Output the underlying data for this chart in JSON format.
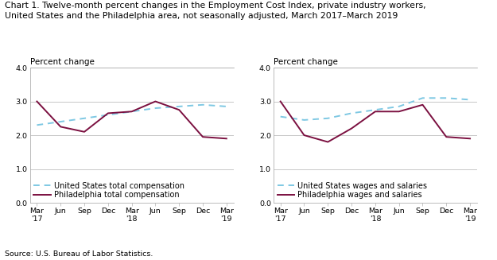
{
  "title_line1": "Chart 1. Twelve-month percent changes in the Employment Cost Index, private industry workers,",
  "title_line2": "United States and the Philadelphia area, not seasonally adjusted, March 2017–March 2019",
  "source": "Source: U.S. Bureau of Labor Statistics.",
  "ylabel": "Percent change",
  "xlabels": [
    "Mar\n'17",
    "Jun",
    "Sep",
    "Dec",
    "Mar\n'18",
    "Jun",
    "Sep",
    "Dec",
    "Mar\n'19"
  ],
  "ylim": [
    0.0,
    4.0
  ],
  "yticks": [
    0.0,
    1.0,
    2.0,
    3.0,
    4.0
  ],
  "left_chart": {
    "us_total": [
      2.3,
      2.4,
      2.5,
      2.6,
      2.7,
      2.8,
      2.85,
      2.9,
      2.85
    ],
    "philly_total": [
      3.0,
      2.25,
      2.1,
      2.65,
      2.7,
      3.0,
      2.75,
      1.95,
      1.9
    ],
    "us_label": "United States total compensation",
    "philly_label": "Philadelphia total compensation"
  },
  "right_chart": {
    "us_wages": [
      2.55,
      2.45,
      2.5,
      2.65,
      2.75,
      2.85,
      3.1,
      3.1,
      3.05
    ],
    "philly_wages": [
      3.0,
      2.0,
      1.8,
      2.2,
      2.7,
      2.7,
      2.9,
      1.95,
      1.9
    ],
    "us_label": "United States wages and salaries",
    "philly_label": "Philadelphia wages and salaries"
  },
  "us_color": "#7EC8E3",
  "philly_color": "#7B1040",
  "linewidth": 1.4,
  "grid_color": "#b0b0b0",
  "title_fontsize": 7.8,
  "ylabel_fontsize": 7.5,
  "tick_fontsize": 6.8,
  "legend_fontsize": 7.0,
  "source_fontsize": 6.8
}
